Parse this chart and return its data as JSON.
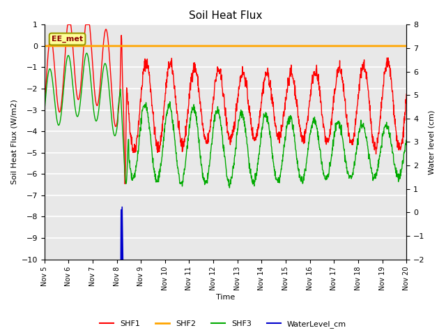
{
  "title": "Soil Heat Flux",
  "xlabel": "Time",
  "ylabel_left": "Soil Heat Flux (W/m2)",
  "ylabel_right": "Water level (cm)",
  "ylim_left": [
    -10.0,
    1.0
  ],
  "ylim_right": [
    -2.0,
    8.0
  ],
  "yticks_left": [
    1.0,
    0.0,
    -1.0,
    -2.0,
    -3.0,
    -4.0,
    -5.0,
    -6.0,
    -7.0,
    -8.0,
    -9.0,
    -10.0
  ],
  "yticks_right": [
    8.0,
    7.0,
    6.0,
    5.0,
    4.0,
    3.0,
    2.0,
    1.0,
    0.0,
    -1.0,
    -2.0
  ],
  "shf2_value": 0.0,
  "colors": {
    "SHF1": "#ff0000",
    "SHF2": "#ffa500",
    "SHF3": "#00aa00",
    "WaterLevel": "#0000cc",
    "background": "#e8e8e8",
    "grid": "#ffffff",
    "annotation_box_face": "#ffff99",
    "annotation_box_edge": "#999900",
    "annotation_text": "#8b0000"
  },
  "annotation_text": "EE_met",
  "legend_labels": [
    "SHF1",
    "SHF2",
    "SHF3",
    "WaterLevel_cm"
  ],
  "xtick_labels": [
    "Nov 5",
    "Nov 6",
    "Nov 7",
    "Nov 8",
    "Nov 9Nov",
    "10Nov",
    "11Nov",
    "12Nov",
    "13Nov",
    "14Nov",
    "15Nov",
    "16Nov",
    "17Nov",
    "18Nov",
    "19Nov 20"
  ],
  "n_days": 15,
  "points_per_day": 96
}
